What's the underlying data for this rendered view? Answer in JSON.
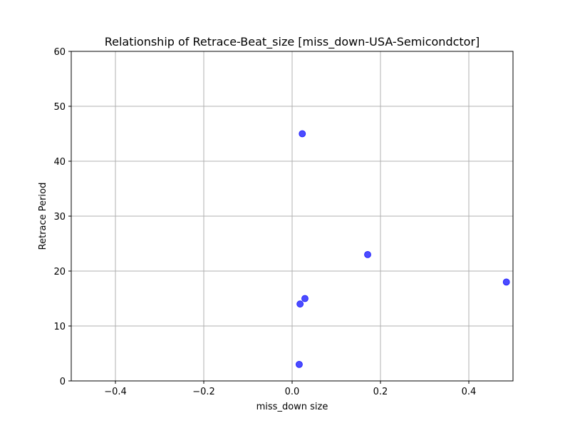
{
  "chart_data": {
    "type": "scatter",
    "title": "Relationship of Retrace-Beat_size [miss_down-USA-Semicondctor]",
    "xlabel": "miss_down size",
    "ylabel": "Retrace Period",
    "xlim": [
      -0.5,
      0.5
    ],
    "ylim": [
      0,
      60
    ],
    "xticks": [
      -0.4,
      -0.2,
      0.0,
      0.2,
      0.4
    ],
    "xtick_labels": [
      "−0.4",
      "−0.2",
      "0.0",
      "0.2",
      "0.4"
    ],
    "yticks": [
      0,
      10,
      20,
      30,
      40,
      50,
      60
    ],
    "ytick_labels": [
      "0",
      "10",
      "20",
      "30",
      "40",
      "50",
      "60"
    ],
    "grid": true,
    "point_color": "#0000ff",
    "points": [
      {
        "x": 0.023,
        "y": 45
      },
      {
        "x": 0.171,
        "y": 23
      },
      {
        "x": 0.485,
        "y": 18
      },
      {
        "x": 0.029,
        "y": 15
      },
      {
        "x": 0.018,
        "y": 14
      },
      {
        "x": 0.016,
        "y": 3
      }
    ]
  }
}
